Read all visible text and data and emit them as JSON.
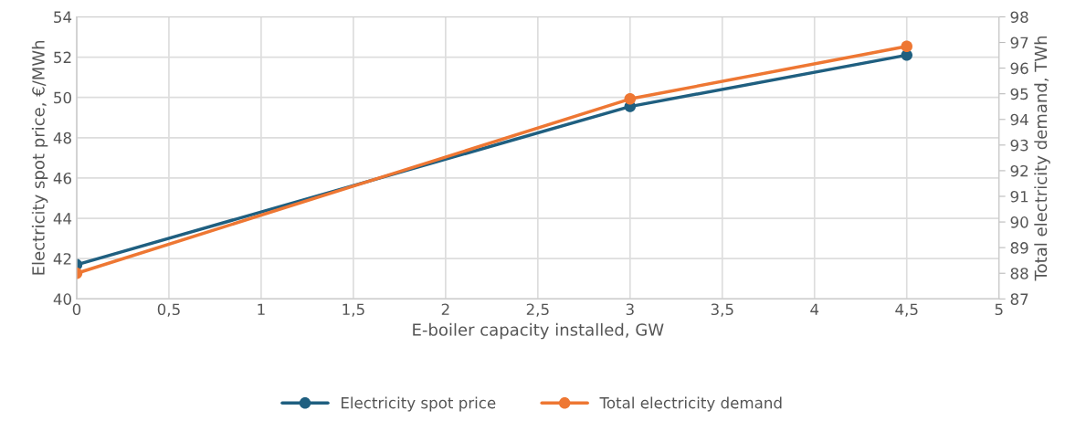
{
  "chart_data": {
    "type": "line",
    "xlabel": "E-boiler capacity installed, GW",
    "ylabel": "Electricity spot price, €/MWh",
    "y2label": "Total electricity demand, TWh",
    "x": [
      0,
      3,
      4.5
    ],
    "series": [
      {
        "name": "Electricity spot price",
        "color": "#1f5f80",
        "values": [
          41.7,
          49.55,
          52.1
        ]
      },
      {
        "name": "Total electricity demand",
        "color": "#ee7733",
        "values": [
          88.0,
          94.8,
          96.85
        ],
        "axis": "y2"
      }
    ],
    "xlim": [
      0,
      5
    ],
    "xticks": [
      0,
      {
        "value": 0.5,
        "label": "0,5"
      },
      1,
      {
        "value": 1.5,
        "label": "1,5"
      },
      2,
      {
        "value": 2.5,
        "label": "2,5"
      },
      3,
      {
        "value": 3.5,
        "label": "3,5"
      },
      4,
      {
        "value": 4.5,
        "label": "4,5"
      },
      5
    ],
    "ylim": [
      40,
      54
    ],
    "yticks": [
      40,
      42,
      44,
      46,
      48,
      50,
      52,
      54
    ],
    "y2lim": [
      87,
      98
    ],
    "y2ticks": [
      87,
      88,
      89,
      90,
      91,
      92,
      93,
      94,
      95,
      96,
      97,
      98
    ],
    "grid": true,
    "legend": "bottom",
    "marker": "circle",
    "line_style": "solid"
  }
}
